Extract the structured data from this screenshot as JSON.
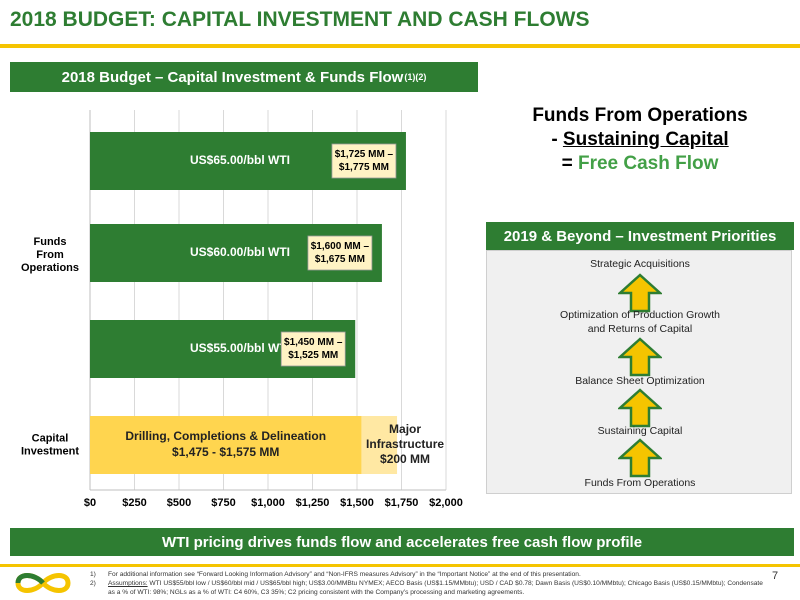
{
  "page": {
    "title": "2018 BUDGET:  CAPITAL INVESTMENT AND CASH FLOWS",
    "page_number": "7"
  },
  "chart_banner": {
    "text": "2018 Budget – Capital Investment & Funds Flow",
    "superscript": "(1)(2)"
  },
  "ffo_formula": {
    "line1": "Funds From Operations",
    "line2_prefix": "- ",
    "line2_underlined": "Sustaining Capital",
    "line3_prefix": "= ",
    "line3_green": "Free Cash Flow"
  },
  "priorities": {
    "title": "2019 & Beyond – Investment Priorities",
    "items": [
      "Strategic Acquisitions",
      "Optimization of Production Growth",
      "and Returns of Capital",
      "Balance Sheet Optimization",
      "Sustaining Capital",
      "Funds From Operations"
    ]
  },
  "bottom_banner": "WTI pricing drives funds flow and accelerates free cash flow profile",
  "footnotes": [
    {
      "num": "1)",
      "text": "For additional information see “Forward Looking Information Advisory” and “Non-IFRS measures Advisory” in the “Important Notice” at the end of this presentation."
    },
    {
      "num": "2)",
      "label": "Assumptions:",
      "text": " WTI US$55/bbl low / US$60/bbl mid / US$65/bbl high; US$3.00/MMBtu NYMEX; AECO Basis (US$1.15/MMbtu); USD / CAD $0.78; Dawn Basis (US$0.10/MMbtu); Chicago Basis (US$0.15/MMbtu); Condensate as a % of WTI: 98%; NGLs as a % of WTI: C4 60%, C3 35%; C2 pricing consistent with the Company’s processing and marketing agreements."
    }
  ],
  "colors": {
    "green": "#2e7d32",
    "yellow": "#f5c400",
    "drilling_fill": "#ffd54f",
    "infra_fill": "#ffe8a3",
    "callout_fill": "#fff3c4"
  },
  "chart_data": {
    "type": "bar",
    "orientation": "horizontal",
    "xlim": [
      0,
      2000
    ],
    "xticks": [
      "$0",
      "$250",
      "$500",
      "$750",
      "$1,000",
      "$1,250",
      "$1,500",
      "$1,750",
      "$2,000"
    ],
    "tick_values": [
      0,
      250,
      500,
      750,
      1000,
      1250,
      1500,
      1750,
      2000
    ],
    "category_groups": [
      {
        "label_lines": [
          "Funds",
          "From",
          "Operations"
        ]
      },
      {
        "label_lines": [
          "Capital",
          "Investment"
        ]
      }
    ],
    "bars": [
      {
        "label": "US$65.00/bbl WTI",
        "value": 1775,
        "callout": [
          "$1,725 MM –",
          "$1,775 MM"
        ]
      },
      {
        "label": "US$60.00/bbl WTI",
        "value": 1640,
        "callout": [
          "$1,600 MM –",
          "$1,675 MM"
        ]
      },
      {
        "label": "US$55.00/bbl WTI",
        "value": 1490,
        "callout": [
          "$1,450 MM –",
          "$1,525 MM"
        ]
      }
    ],
    "stacked_bar": {
      "segments": [
        {
          "label_lines": [
            "Drilling, Completions & Delineation",
            "$1,475 - $1,575 MM"
          ],
          "start": 0,
          "end": 1525
        },
        {
          "label_lines": [
            "Major",
            "Infrastructure",
            "$200 MM"
          ],
          "start": 1525,
          "end": 1725
        }
      ]
    },
    "grid": true
  }
}
